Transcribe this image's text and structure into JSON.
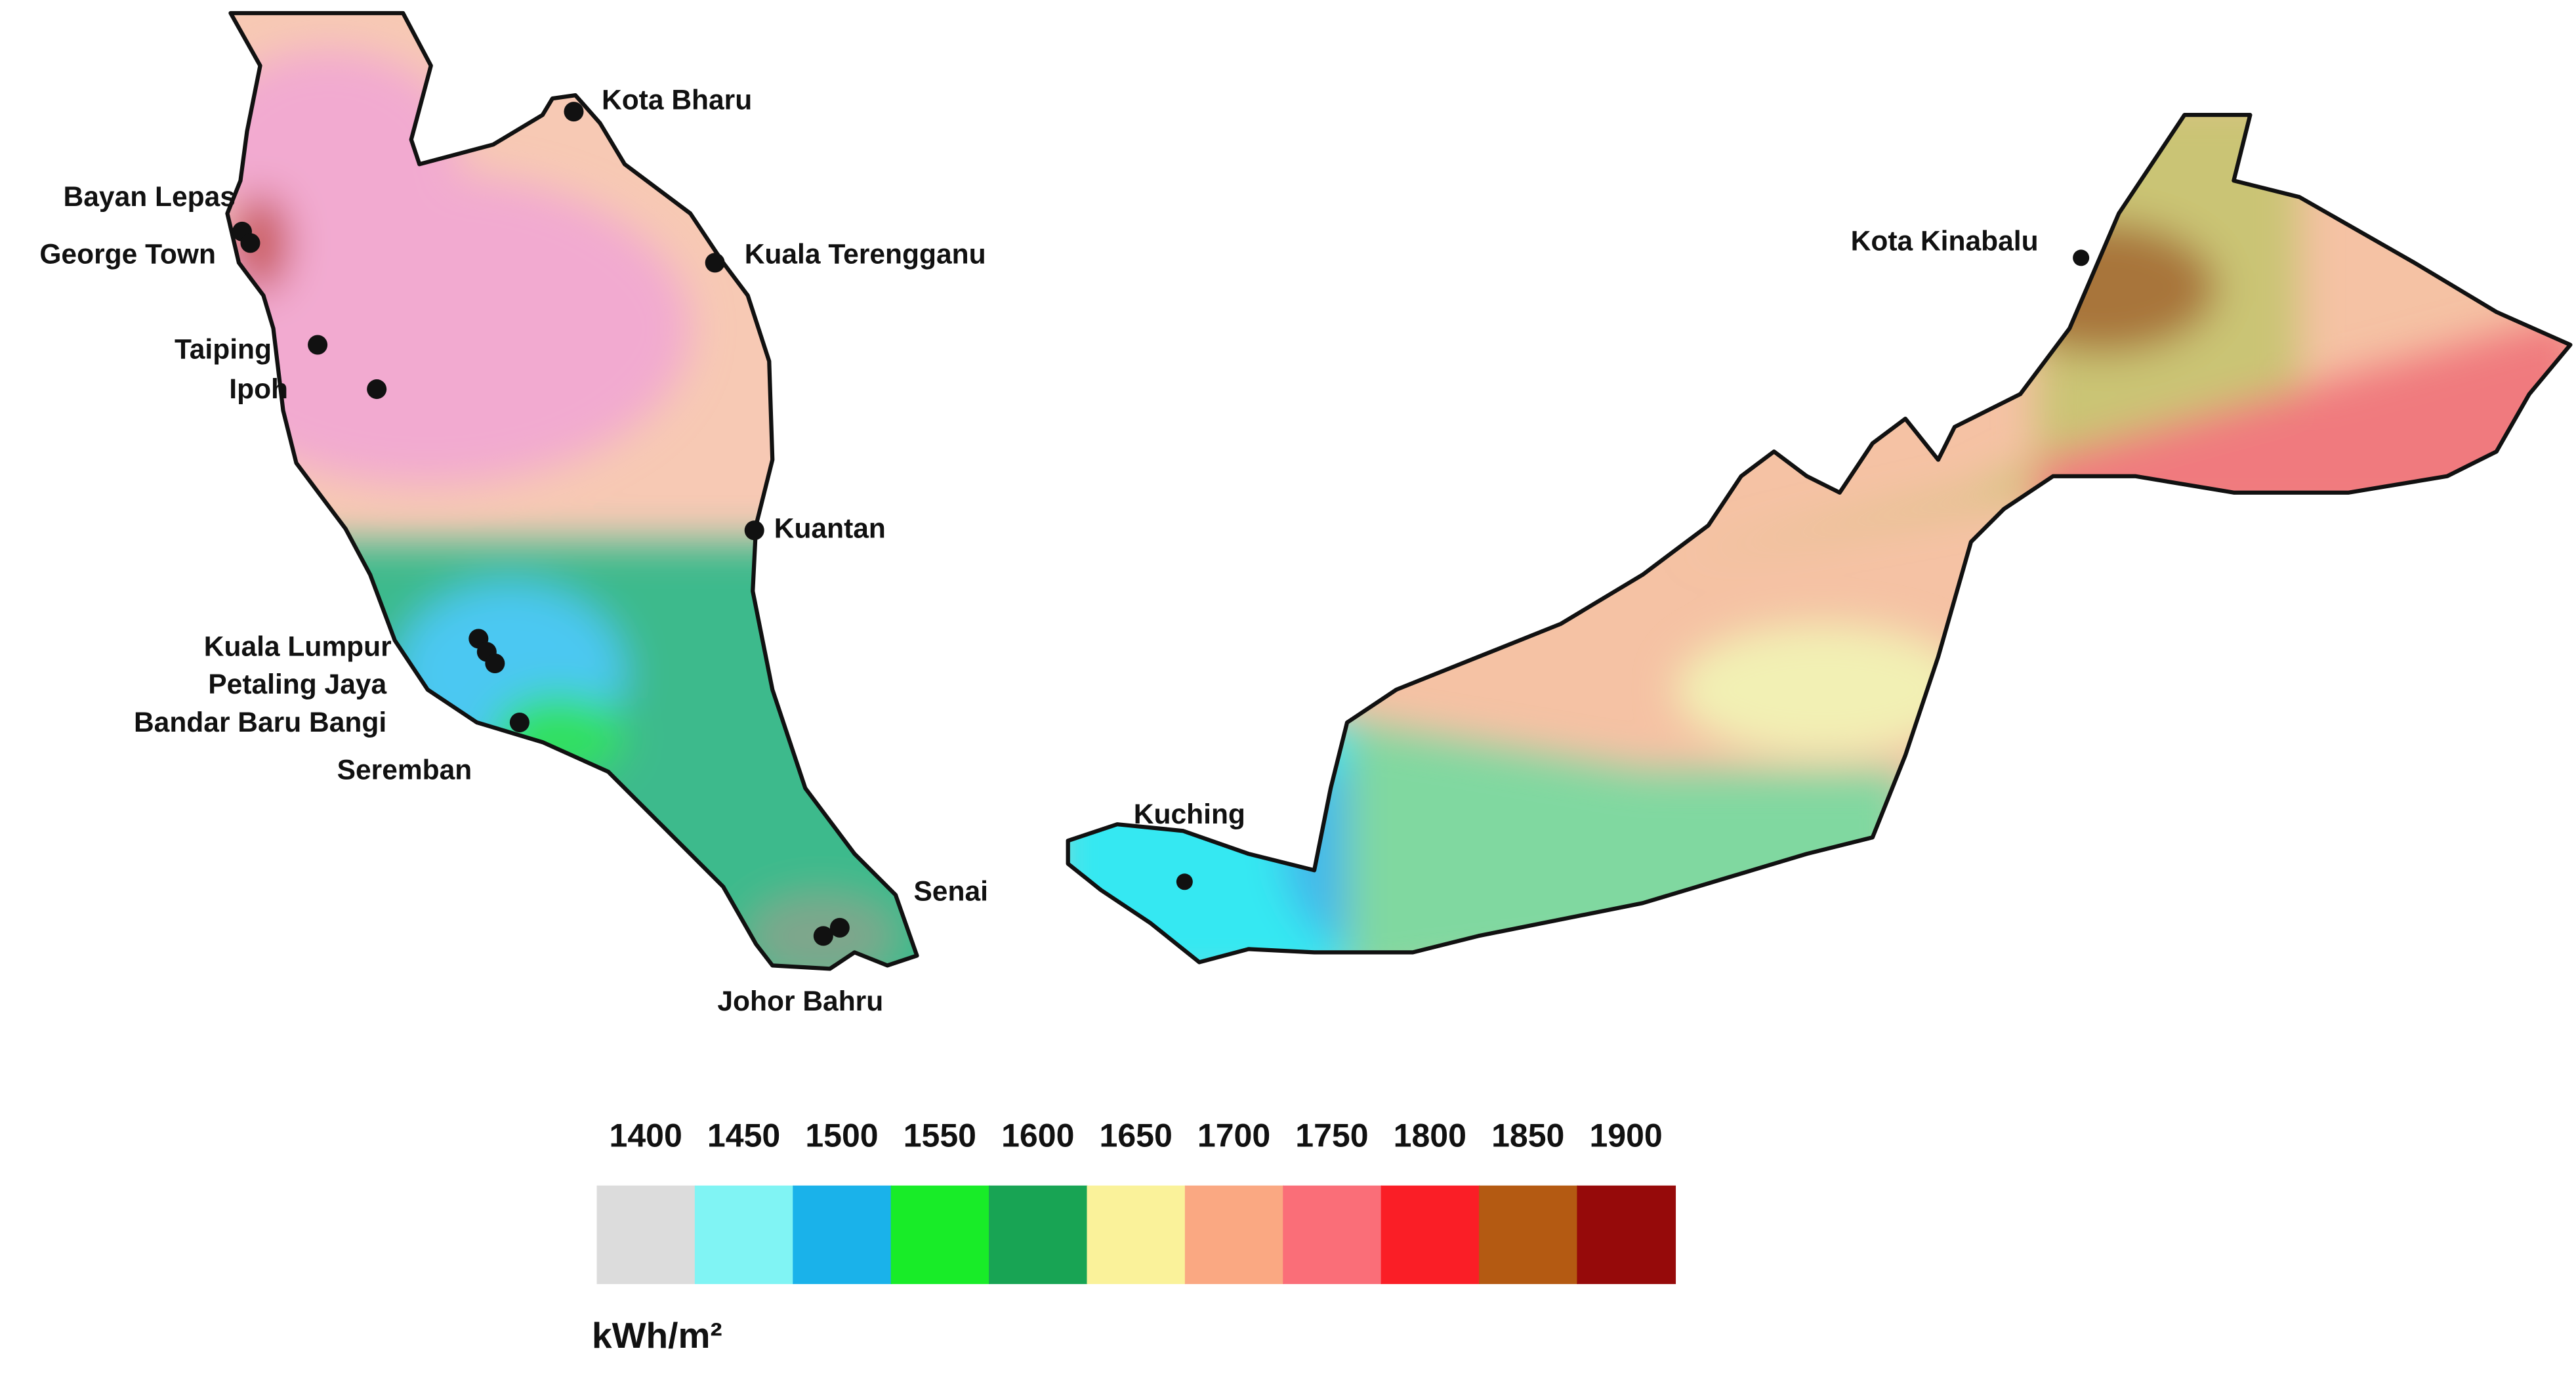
{
  "cities": [
    "Kota Bharu",
    "Bayan Lepas",
    "George Town",
    "Kuala Terengganu",
    "Taiping",
    "Ipoh",
    "Kuantan",
    "Kuala Lumpur",
    "Petaling Jaya",
    "Bandar Baru Bangi",
    "Seremban",
    "Senai",
    "Johor Bahru",
    "Kota Kinabalu",
    "Kuching"
  ],
  "legend": {
    "values": [
      1400,
      1450,
      1500,
      1550,
      1600,
      1650,
      1700,
      1750,
      1800,
      1850,
      1900
    ],
    "colors": [
      "#dcdcdc",
      "#80f4f4",
      "#1ab2ea",
      "#18ec28",
      "#18a454",
      "#faf29a",
      "#faa882",
      "#fa6e78",
      "#fa1e26",
      "#b45a12",
      "#960a0a"
    ],
    "unit": "kWh/m²"
  }
}
